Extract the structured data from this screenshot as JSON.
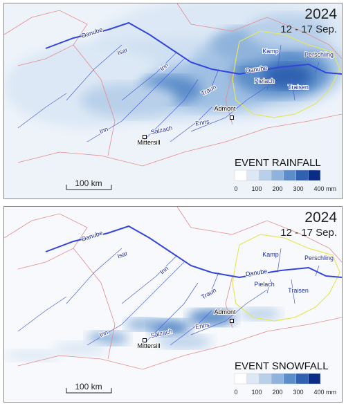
{
  "panels": [
    {
      "year": "2024",
      "dates": "12 - 17 Sep.",
      "rivers": [
        "Danube",
        "Isar",
        "Inn",
        "Traun",
        "Danube",
        "Kamp",
        "Perschling",
        "Pielach",
        "Traisen",
        "Inn",
        "Salzach",
        "Enns"
      ],
      "towns": [
        "Admont",
        "Mittersill"
      ],
      "legend": {
        "title": "EVENT RAINFALL",
        "ticks": [
          0,
          100,
          200,
          300,
          400
        ],
        "unit": "mm",
        "colors": [
          "#ffffff",
          "#dce8f5",
          "#b9d0ea",
          "#8fb3dc",
          "#5b8dc9",
          "#2f61b0",
          "#0b2c86"
        ]
      },
      "scale_bar": "100 km"
    },
    {
      "year": "2024",
      "dates": "12 - 17 Sep.",
      "rivers": [
        "Danube",
        "Isar",
        "Inn",
        "Traun",
        "Danube",
        "Kamp",
        "Perschling",
        "Pielach",
        "Traisen",
        "Inn",
        "Salzach",
        "Enns"
      ],
      "towns": [
        "Admont",
        "Mittersill"
      ],
      "legend": {
        "title": "EVENT SNOWFALL",
        "ticks": [
          0,
          100,
          200,
          300,
          400
        ],
        "unit": "mm",
        "colors": [
          "#ffffff",
          "#dce8f5",
          "#b9d0ea",
          "#8fb3dc",
          "#5b8dc9",
          "#2f61b0",
          "#0b2c86"
        ]
      },
      "scale_bar": "100 km"
    }
  ]
}
